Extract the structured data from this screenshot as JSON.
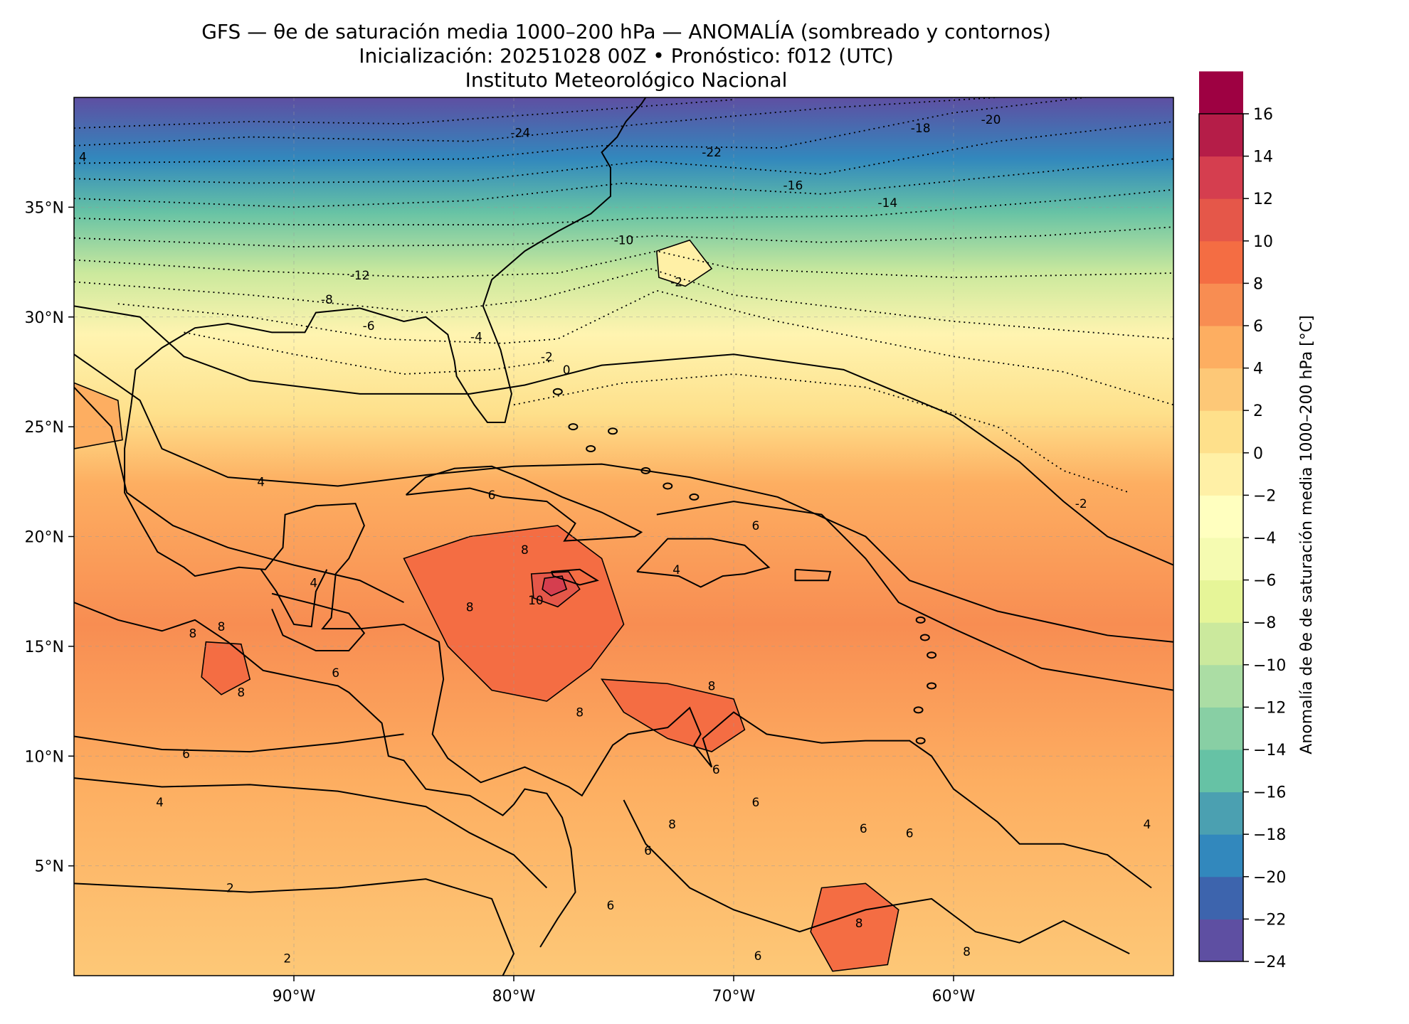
{
  "title": {
    "line1": "GFS — θe de saturación media 1000–200 hPa — ANOMALÍA (sombreado y contornos)",
    "line2": "Inicialización: 20251028 00Z   •   Pronóstico: f012 (UTC)",
    "line3": "Instituto Meteorológico Nacional"
  },
  "chart_data": {
    "type": "heatmap",
    "projection": "PlateCarree",
    "xlim": [
      -100,
      -50
    ],
    "ylim": [
      0,
      40
    ],
    "x_ticks": [
      -90,
      -80,
      -70,
      -60
    ],
    "x_tick_labels": [
      "90°W",
      "80°W",
      "70°W",
      "60°W"
    ],
    "y_ticks": [
      5,
      10,
      15,
      20,
      25,
      30,
      35
    ],
    "y_tick_labels": [
      "5°N",
      "10°N",
      "15°N",
      "20°N",
      "25°N",
      "30°N",
      "35°N"
    ],
    "grid": true,
    "colormap": "Spectral_r",
    "colorbar": {
      "label": "Anomalía de θe de saturación media 1000–200 hPa [°C]",
      "levels": [
        -24,
        -22,
        -20,
        -18,
        -16,
        -14,
        -12,
        -10,
        -8,
        -6,
        -4,
        -2,
        0,
        2,
        4,
        6,
        8,
        10,
        12,
        14,
        16
      ],
      "tick_labels": [
        "16",
        "14",
        "12",
        "10",
        "8",
        "6",
        "4",
        "2",
        "0",
        "−2",
        "−4",
        "−6",
        "−8",
        "−10",
        "−12",
        "−14",
        "−16",
        "−18",
        "−20",
        "−22",
        "−24"
      ],
      "colors": [
        "#5e4fa2",
        "#3d64ad",
        "#3288bd",
        "#4ba0b1",
        "#66c2a5",
        "#88cfa4",
        "#abdda4",
        "#cbe99d",
        "#e6f598",
        "#f5fbb1",
        "#ffffbf",
        "#fff0a6",
        "#fee08b",
        "#fdc877",
        "#fdae61",
        "#f88d52",
        "#f46d43",
        "#e55749",
        "#d53e4f",
        "#b51d48",
        "#9e0142"
      ]
    },
    "contour_labels": [
      {
        "text": "-24",
        "lon": -79.7,
        "lat": 38.4
      },
      {
        "text": "-22",
        "lon": -71.0,
        "lat": 37.5
      },
      {
        "text": "-20",
        "lon": -58.3,
        "lat": 39.0
      },
      {
        "text": "-18",
        "lon": -61.5,
        "lat": 38.6
      },
      {
        "text": "-16",
        "lon": -67.3,
        "lat": 36.0
      },
      {
        "text": "-14",
        "lon": -63.0,
        "lat": 35.2
      },
      {
        "text": "-12",
        "lon": -87.0,
        "lat": 31.9
      },
      {
        "text": "-10",
        "lon": -75.0,
        "lat": 33.5
      },
      {
        "text": "-8",
        "lon": -88.5,
        "lat": 30.8
      },
      {
        "text": "-6",
        "lon": -86.6,
        "lat": 29.6
      },
      {
        "text": "-4",
        "lon": -81.7,
        "lat": 29.1
      },
      {
        "text": "-2",
        "lon": -78.5,
        "lat": 28.2
      },
      {
        "text": "-2",
        "lon": -72.6,
        "lat": 31.6
      },
      {
        "text": "-2",
        "lon": -54.2,
        "lat": 21.5
      },
      {
        "text": "0",
        "lon": -77.6,
        "lat": 27.6
      },
      {
        "text": "4",
        "lon": -91.5,
        "lat": 22.5
      },
      {
        "text": "4",
        "lon": -99.6,
        "lat": 37.3
      },
      {
        "text": "4",
        "lon": -96.1,
        "lat": 7.9
      },
      {
        "text": "4",
        "lon": -89.1,
        "lat": 17.9
      },
      {
        "text": "4",
        "lon": -72.6,
        "lat": 18.5
      },
      {
        "text": "4",
        "lon": -51.2,
        "lat": 6.9
      },
      {
        "text": "6",
        "lon": -81.0,
        "lat": 21.9
      },
      {
        "text": "6",
        "lon": -69.0,
        "lat": 20.5
      },
      {
        "text": "6",
        "lon": -88.1,
        "lat": 13.8
      },
      {
        "text": "6",
        "lon": -94.9,
        "lat": 10.1
      },
      {
        "text": "6",
        "lon": -69.0,
        "lat": 7.9
      },
      {
        "text": "6",
        "lon": -70.8,
        "lat": 9.4
      },
      {
        "text": "6",
        "lon": -62.0,
        "lat": 6.5
      },
      {
        "text": "6",
        "lon": -64.1,
        "lat": 6.7
      },
      {
        "text": "6",
        "lon": -73.9,
        "lat": 5.7
      },
      {
        "text": "6",
        "lon": -75.6,
        "lat": 3.2
      },
      {
        "text": "6",
        "lon": -68.9,
        "lat": 0.9
      },
      {
        "text": "8",
        "lon": -82.0,
        "lat": 16.8
      },
      {
        "text": "8",
        "lon": -79.5,
        "lat": 19.4
      },
      {
        "text": "8",
        "lon": -77.0,
        "lat": 12.0
      },
      {
        "text": "8",
        "lon": -71.0,
        "lat": 13.2
      },
      {
        "text": "8",
        "lon": -94.6,
        "lat": 15.6
      },
      {
        "text": "8",
        "lon": -93.3,
        "lat": 15.9
      },
      {
        "text": "8",
        "lon": -92.4,
        "lat": 12.9
      },
      {
        "text": "8",
        "lon": -72.8,
        "lat": 6.9
      },
      {
        "text": "8",
        "lon": -64.3,
        "lat": 2.4
      },
      {
        "text": "8",
        "lon": -59.4,
        "lat": 1.1
      },
      {
        "text": "10",
        "lon": -79.0,
        "lat": 17.1
      },
      {
        "text": "2",
        "lon": -92.9,
        "lat": 4.0
      },
      {
        "text": "2",
        "lon": -90.3,
        "lat": 0.8
      }
    ]
  }
}
